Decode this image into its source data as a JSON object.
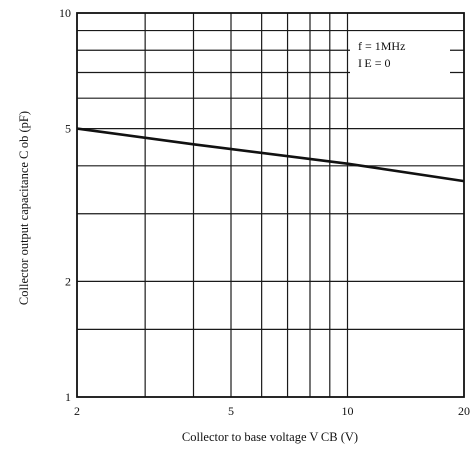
{
  "chart_data": {
    "type": "line",
    "xscale": "log",
    "yscale": "log",
    "xlim": [
      2,
      20
    ],
    "ylim": [
      1,
      10
    ],
    "xticks": [
      2,
      5,
      10,
      20
    ],
    "yticks": [
      1,
      2,
      5,
      10
    ],
    "xtick_labels": [
      "2",
      "5",
      "10",
      "20"
    ],
    "ytick_labels": [
      "1",
      "2",
      "5",
      "10"
    ],
    "x_minor_gridlines": [
      3,
      4,
      6,
      7,
      8,
      9
    ],
    "y_minor_gridlines": [
      1.5,
      3,
      4,
      6,
      7,
      8,
      9
    ],
    "grid": true,
    "xlabel": "Collector to base voltage  V CB (V)",
    "ylabel": "Collector output capacitance  C ob (pF)",
    "annotations": [
      "f = 1MHz",
      "I E = 0"
    ],
    "series": [
      {
        "x": [
          2,
          4,
          10,
          20
        ],
        "y": [
          5.0,
          4.55,
          4.05,
          3.65
        ]
      }
    ]
  }
}
